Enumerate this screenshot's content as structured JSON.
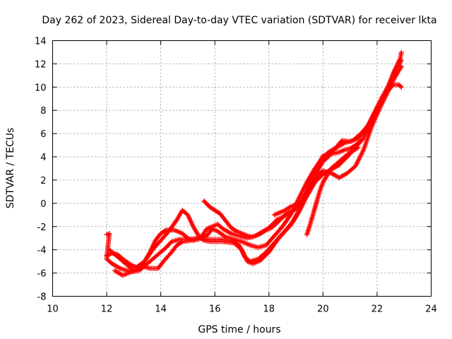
{
  "chart_data": {
    "type": "scatter",
    "title": "Day 262 of 2023, Sidereal Day-to-day VTEC variation (SDTVAR) for receiver lkta",
    "xlabel": "GPS time / hours",
    "ylabel": "SDTVAR / TECUs",
    "xlim": [
      10,
      24
    ],
    "ylim": [
      -8,
      14
    ],
    "xticks": [
      10,
      12,
      14,
      16,
      18,
      20,
      22,
      24
    ],
    "yticks": [
      -8,
      -6,
      -4,
      -2,
      0,
      2,
      4,
      6,
      8,
      10,
      12,
      14
    ],
    "xtick_labels": [
      "10",
      "12",
      "14",
      "16",
      "18",
      "20",
      "22",
      "24"
    ],
    "ytick_labels": [
      "-8",
      "-6",
      "-4",
      "-2",
      "0",
      "2",
      "4",
      "6",
      "8",
      "10",
      "12",
      "14"
    ],
    "grid": true,
    "marker": "+",
    "marker_color": "#ff0000",
    "series": [
      {
        "name": "track-1",
        "points": [
          [
            12.0,
            -2.7
          ],
          [
            12.1,
            -2.6
          ],
          [
            12.05,
            -3.6
          ],
          [
            12.0,
            -4.8
          ],
          [
            12.2,
            -5.2
          ],
          [
            12.5,
            -5.6
          ],
          [
            12.9,
            -5.9
          ],
          [
            13.2,
            -5.8
          ],
          [
            13.5,
            -5.2
          ],
          [
            13.8,
            -4.6
          ],
          [
            14.0,
            -4.2
          ],
          [
            14.2,
            -3.8
          ],
          [
            14.4,
            -3.3
          ],
          [
            14.7,
            -3.1
          ],
          [
            15.0,
            -3.1
          ],
          [
            15.4,
            -3.0
          ],
          [
            15.8,
            -3.1
          ],
          [
            16.2,
            -3.1
          ],
          [
            16.6,
            -3.2
          ],
          [
            16.9,
            -3.6
          ],
          [
            17.1,
            -4.6
          ],
          [
            17.3,
            -5.0
          ],
          [
            17.6,
            -4.8
          ],
          [
            17.9,
            -4.2
          ],
          [
            18.2,
            -3.4
          ],
          [
            18.5,
            -2.6
          ],
          [
            18.8,
            -1.9
          ],
          [
            19.1,
            -0.8
          ],
          [
            19.4,
            0.6
          ],
          [
            19.7,
            1.8
          ],
          [
            20.0,
            2.5
          ],
          [
            20.3,
            2.9
          ],
          [
            20.6,
            3.3
          ],
          [
            20.9,
            4.0
          ],
          [
            21.2,
            4.8
          ],
          [
            21.5,
            5.6
          ],
          [
            21.8,
            7.2
          ],
          [
            22.1,
            8.6
          ],
          [
            22.4,
            10.0
          ],
          [
            22.6,
            11.2
          ],
          [
            22.8,
            12.2
          ],
          [
            22.85,
            12.4
          ],
          [
            22.9,
            13.0
          ]
        ]
      },
      {
        "name": "track-2",
        "points": [
          [
            12.0,
            -4.5
          ],
          [
            12.2,
            -4.3
          ],
          [
            12.4,
            -4.4
          ],
          [
            12.6,
            -4.8
          ],
          [
            12.9,
            -5.3
          ],
          [
            13.1,
            -5.5
          ],
          [
            13.4,
            -5.0
          ],
          [
            13.7,
            -4.0
          ],
          [
            14.0,
            -3.2
          ],
          [
            14.3,
            -2.4
          ],
          [
            14.6,
            -1.4
          ],
          [
            14.8,
            -0.6
          ],
          [
            15.0,
            -1.0
          ],
          [
            15.2,
            -2.0
          ],
          [
            15.4,
            -2.8
          ],
          [
            15.6,
            -3.2
          ],
          [
            15.9,
            -3.3
          ],
          [
            16.3,
            -3.3
          ],
          [
            16.7,
            -3.4
          ],
          [
            17.0,
            -4.0
          ],
          [
            17.2,
            -5.0
          ],
          [
            17.4,
            -5.2
          ],
          [
            17.7,
            -4.9
          ],
          [
            18.0,
            -4.2
          ],
          [
            18.3,
            -3.2
          ],
          [
            18.6,
            -2.4
          ],
          [
            18.9,
            -1.5
          ],
          [
            19.2,
            -0.2
          ],
          [
            19.5,
            1.4
          ],
          [
            19.8,
            2.8
          ],
          [
            20.0,
            3.6
          ],
          [
            20.2,
            4.0
          ],
          [
            20.4,
            4.6
          ],
          [
            20.7,
            5.4
          ],
          [
            21.0,
            5.3
          ],
          [
            21.3,
            5.6
          ],
          [
            21.6,
            6.4
          ],
          [
            21.9,
            7.8
          ],
          [
            22.2,
            9.2
          ],
          [
            22.5,
            10.4
          ],
          [
            22.7,
            11.6
          ],
          [
            22.9,
            12.3
          ]
        ]
      },
      {
        "name": "track-3",
        "points": [
          [
            12.1,
            -4.0
          ],
          [
            12.4,
            -4.6
          ],
          [
            12.7,
            -5.2
          ],
          [
            13.0,
            -5.8
          ],
          [
            13.3,
            -5.4
          ],
          [
            13.6,
            -5.6
          ],
          [
            13.9,
            -5.6
          ],
          [
            14.1,
            -5.0
          ],
          [
            14.4,
            -4.2
          ],
          [
            14.6,
            -3.6
          ],
          [
            14.8,
            -3.3
          ],
          [
            15.1,
            -3.2
          ],
          [
            15.4,
            -3.1
          ],
          [
            15.7,
            -2.8
          ],
          [
            15.9,
            -2.2
          ],
          [
            16.1,
            -2.4
          ],
          [
            16.4,
            -2.9
          ],
          [
            16.7,
            -3.1
          ],
          [
            17.0,
            -3.3
          ],
          [
            17.3,
            -3.6
          ],
          [
            17.6,
            -3.8
          ],
          [
            17.9,
            -3.6
          ],
          [
            18.2,
            -2.8
          ],
          [
            18.5,
            -2.0
          ],
          [
            18.8,
            -1.0
          ],
          [
            19.1,
            0.4
          ],
          [
            19.4,
            1.8
          ],
          [
            19.7,
            3.0
          ],
          [
            19.95,
            3.8
          ],
          [
            20.2,
            4.4
          ],
          [
            20.5,
            4.8
          ],
          [
            20.8,
            5.2
          ],
          [
            21.1,
            5.4
          ],
          [
            21.4,
            6.0
          ],
          [
            21.7,
            6.8
          ],
          [
            22.0,
            8.2
          ],
          [
            22.3,
            9.4
          ],
          [
            22.6,
            10.2
          ],
          [
            22.8,
            10.2
          ],
          [
            22.9,
            10.0
          ]
        ]
      },
      {
        "name": "track-4",
        "points": [
          [
            12.3,
            -5.8
          ],
          [
            12.6,
            -6.2
          ],
          [
            12.9,
            -5.9
          ],
          [
            13.2,
            -5.6
          ],
          [
            13.4,
            -5.0
          ],
          [
            13.6,
            -4.2
          ],
          [
            13.8,
            -3.2
          ],
          [
            14.0,
            -2.6
          ],
          [
            14.2,
            -2.3
          ],
          [
            14.5,
            -2.3
          ],
          [
            14.8,
            -2.6
          ],
          [
            15.0,
            -3.0
          ],
          [
            15.2,
            -3.2
          ],
          [
            15.5,
            -2.9
          ],
          [
            15.7,
            -2.2
          ],
          [
            15.9,
            -2.0
          ],
          [
            16.1,
            -1.8
          ],
          [
            16.3,
            -2.2
          ],
          [
            16.6,
            -2.6
          ],
          [
            16.9,
            -2.8
          ],
          [
            17.2,
            -3.0
          ],
          [
            17.5,
            -2.8
          ],
          [
            17.8,
            -2.4
          ],
          [
            18.1,
            -2.1
          ],
          [
            18.3,
            -1.7
          ],
          [
            18.6,
            -1.0
          ],
          [
            18.9,
            -0.6
          ],
          [
            19.2,
            -0.2
          ],
          [
            19.4,
            0.8
          ],
          [
            19.6,
            1.8
          ],
          [
            19.8,
            2.4
          ],
          [
            20.0,
            2.8
          ],
          [
            20.3,
            2.6
          ],
          [
            20.6,
            2.2
          ],
          [
            20.9,
            2.6
          ],
          [
            21.2,
            3.2
          ],
          [
            21.5,
            4.6
          ],
          [
            21.8,
            6.6
          ],
          [
            22.1,
            8.2
          ],
          [
            22.4,
            9.6
          ],
          [
            22.6,
            10.6
          ],
          [
            22.8,
            11.4
          ],
          [
            22.9,
            11.8
          ]
        ]
      },
      {
        "name": "track-5",
        "points": [
          [
            15.6,
            0.2
          ],
          [
            15.8,
            -0.3
          ],
          [
            16.0,
            -0.6
          ],
          [
            16.2,
            -0.9
          ],
          [
            16.4,
            -1.5
          ],
          [
            16.6,
            -2.1
          ],
          [
            16.8,
            -2.4
          ],
          [
            17.0,
            -2.6
          ],
          [
            17.2,
            -2.8
          ],
          [
            17.4,
            -2.9
          ],
          [
            17.7,
            -2.6
          ],
          [
            18.0,
            -2.1
          ],
          [
            18.3,
            -1.4
          ],
          [
            18.5,
            -1.2
          ],
          [
            18.7,
            -0.9
          ],
          [
            18.9,
            -0.6
          ],
          [
            19.0,
            -0.4
          ],
          [
            19.2,
            0.2
          ],
          [
            19.4,
            1.2
          ],
          [
            19.6,
            2.4
          ],
          [
            19.8,
            3.2
          ],
          [
            20.0,
            4.1
          ],
          [
            20.2,
            4.2
          ],
          [
            20.4,
            4.3
          ],
          [
            20.6,
            4.4
          ],
          [
            20.8,
            4.6
          ],
          [
            21.0,
            4.7
          ],
          [
            21.2,
            5.0
          ],
          [
            21.4,
            5.4
          ]
        ]
      },
      {
        "name": "track-6",
        "points": [
          [
            19.4,
            -2.7
          ],
          [
            19.5,
            -2.0
          ],
          [
            19.6,
            -1.2
          ],
          [
            19.7,
            -0.4
          ],
          [
            19.8,
            0.4
          ],
          [
            19.9,
            1.2
          ],
          [
            20.0,
            1.8
          ],
          [
            20.1,
            2.2
          ],
          [
            20.2,
            2.6
          ],
          [
            20.3,
            3.0
          ],
          [
            20.5,
            3.4
          ],
          [
            20.7,
            3.8
          ],
          [
            20.9,
            4.2
          ],
          [
            21.1,
            4.5
          ],
          [
            21.3,
            4.8
          ]
        ]
      },
      {
        "name": "track-7",
        "points": [
          [
            18.2,
            -1.0
          ],
          [
            18.4,
            -0.8
          ],
          [
            18.6,
            -0.6
          ],
          [
            18.8,
            -0.3
          ],
          [
            19.0,
            -0.1
          ],
          [
            19.2,
            0.0
          ]
        ]
      }
    ]
  }
}
